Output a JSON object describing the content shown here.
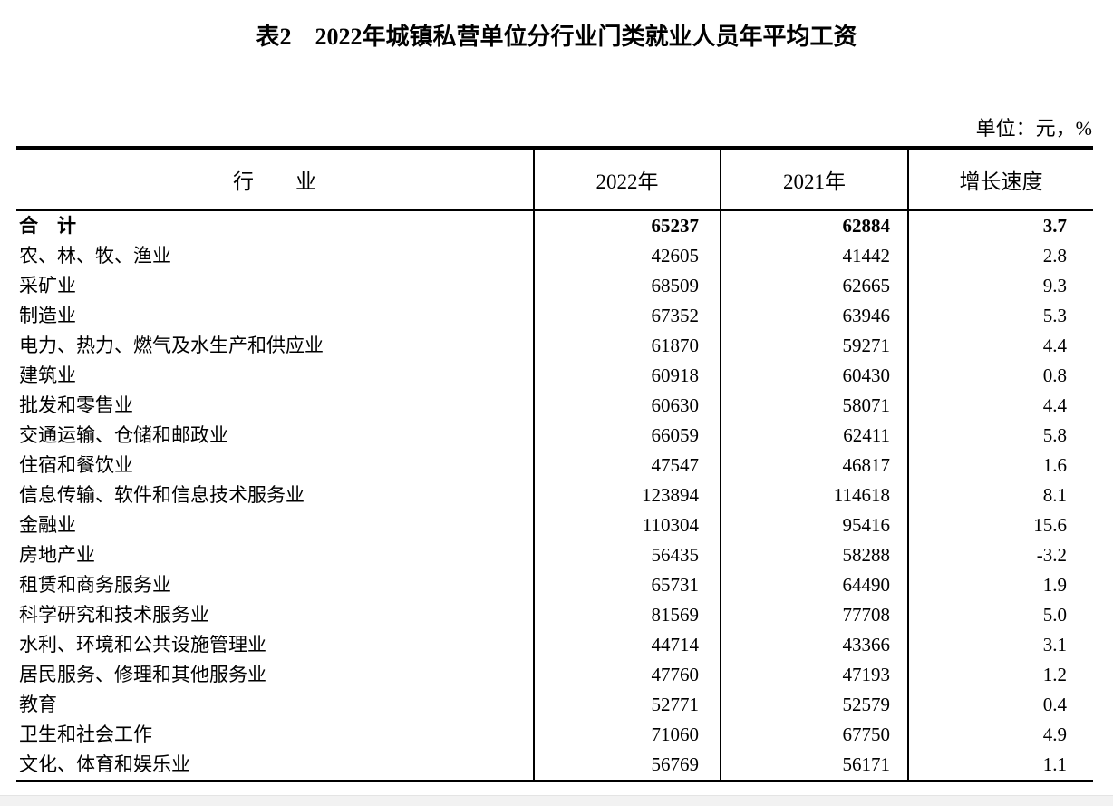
{
  "page": {
    "title": "表2　2022年城镇私营单位分行业门类就业人员年平均工资",
    "unit_note": "单位：元，%"
  },
  "colors": {
    "text": "#000000",
    "table_border": "#000000",
    "page_background": "#ffffff",
    "bottom_band": "#f2f2f2"
  },
  "table": {
    "columns": [
      "行　　业",
      "2022年",
      "2021年",
      "增长速度"
    ],
    "rows": [
      {
        "industry": "合　计",
        "y2022": "65237",
        "y2021": "62884",
        "growth": "3.7",
        "bold": true
      },
      {
        "industry": "农、林、牧、渔业",
        "y2022": "42605",
        "y2021": "41442",
        "growth": "2.8",
        "bold": false
      },
      {
        "industry": "采矿业",
        "y2022": "68509",
        "y2021": "62665",
        "growth": "9.3",
        "bold": false
      },
      {
        "industry": "制造业",
        "y2022": "67352",
        "y2021": "63946",
        "growth": "5.3",
        "bold": false
      },
      {
        "industry": "电力、热力、燃气及水生产和供应业",
        "y2022": "61870",
        "y2021": "59271",
        "growth": "4.4",
        "bold": false
      },
      {
        "industry": "建筑业",
        "y2022": "60918",
        "y2021": "60430",
        "growth": "0.8",
        "bold": false
      },
      {
        "industry": "批发和零售业",
        "y2022": "60630",
        "y2021": "58071",
        "growth": "4.4",
        "bold": false
      },
      {
        "industry": "交通运输、仓储和邮政业",
        "y2022": "66059",
        "y2021": "62411",
        "growth": "5.8",
        "bold": false
      },
      {
        "industry": "住宿和餐饮业",
        "y2022": "47547",
        "y2021": "46817",
        "growth": "1.6",
        "bold": false
      },
      {
        "industry": "信息传输、软件和信息技术服务业",
        "y2022": "123894",
        "y2021": "114618",
        "growth": "8.1",
        "bold": false
      },
      {
        "industry": "金融业",
        "y2022": "110304",
        "y2021": "95416",
        "growth": "15.6",
        "bold": false
      },
      {
        "industry": "房地产业",
        "y2022": "56435",
        "y2021": "58288",
        "growth": "-3.2",
        "bold": false
      },
      {
        "industry": "租赁和商务服务业",
        "y2022": "65731",
        "y2021": "64490",
        "growth": "1.9",
        "bold": false
      },
      {
        "industry": "科学研究和技术服务业",
        "y2022": "81569",
        "y2021": "77708",
        "growth": "5.0",
        "bold": false
      },
      {
        "industry": "水利、环境和公共设施管理业",
        "y2022": "44714",
        "y2021": "43366",
        "growth": "3.1",
        "bold": false
      },
      {
        "industry": "居民服务、修理和其他服务业",
        "y2022": "47760",
        "y2021": "47193",
        "growth": "1.2",
        "bold": false
      },
      {
        "industry": "教育",
        "y2022": "52771",
        "y2021": "52579",
        "growth": "0.4",
        "bold": false
      },
      {
        "industry": "卫生和社会工作",
        "y2022": "71060",
        "y2021": "67750",
        "growth": "4.9",
        "bold": false
      },
      {
        "industry": "文化、体育和娱乐业",
        "y2022": "56769",
        "y2021": "56171",
        "growth": "1.1",
        "bold": false
      }
    ]
  }
}
